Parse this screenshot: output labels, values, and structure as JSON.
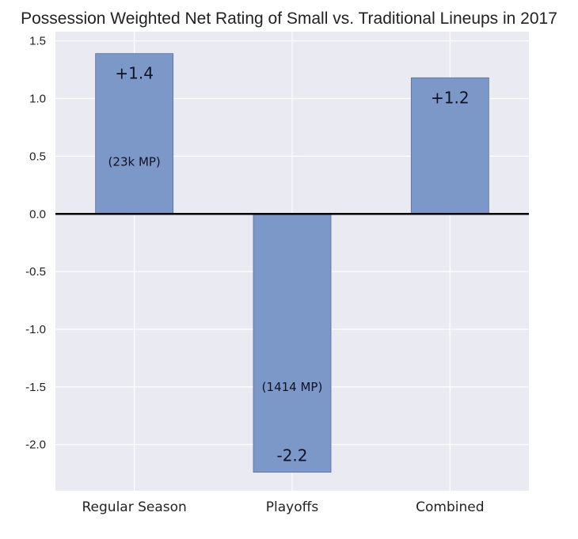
{
  "chart_data": {
    "type": "bar",
    "title": "Possession Weighted Net Rating of Small vs. Traditional Lineups in 2017",
    "xlabel": "",
    "ylabel": "",
    "categories": [
      "Regular Season",
      "Playoffs",
      "Combined"
    ],
    "values": [
      1.39,
      -2.24,
      1.18
    ],
    "value_labels": [
      "+1.4",
      "-2.2",
      "+1.2"
    ],
    "minutes_labels": [
      "(23k MP)",
      "(1414 MP)",
      ""
    ],
    "minutes_label_y": [
      0.45,
      -1.5,
      null
    ],
    "ylim": [
      -2.4,
      1.58
    ],
    "yticks": [
      1.5,
      1.0,
      0.5,
      0.0,
      -0.5,
      -1.0,
      -1.5,
      -2.0
    ],
    "ytick_labels": [
      "1.5",
      "1.0",
      "0.5",
      "0.0",
      "-0.5",
      "-1.0",
      "-1.5",
      "-2.0"
    ],
    "grid": true,
    "bar_color": "#7b98c8",
    "background_color": "#eaeaf2",
    "zero_line_color": "#000000"
  }
}
